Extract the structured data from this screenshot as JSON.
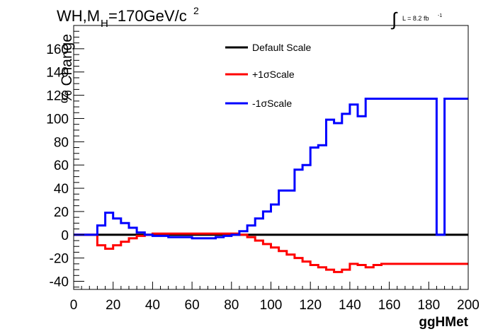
{
  "chart_data": {
    "type": "line",
    "title_main": "WH,M",
    "title_sub": "H",
    "title_rest": "=170GeV/c",
    "title_sup": "2",
    "lumi_label": "L = 8.2 fb",
    "lumi_sup": "-1",
    "xlabel": "ggHMet",
    "ylabel": "% Change",
    "xlim": [
      0,
      200
    ],
    "ylim": [
      -47,
      180
    ],
    "x_ticks": [
      0,
      20,
      40,
      60,
      80,
      100,
      120,
      140,
      160,
      180,
      200
    ],
    "y_ticks": [
      -40,
      -20,
      0,
      20,
      40,
      60,
      80,
      100,
      120,
      140,
      160
    ],
    "legend_position": "top-center",
    "bin_width": 4,
    "bin_edges_start": 0,
    "series": [
      {
        "name": "Default Scale",
        "color": "#000000",
        "values": [
          0,
          0,
          0,
          0,
          0,
          0,
          0,
          0,
          0,
          0,
          0,
          0,
          0,
          0,
          0,
          0,
          0,
          0,
          0,
          0,
          0,
          0,
          0,
          0,
          0,
          0,
          0,
          0,
          0,
          0,
          0,
          0,
          0,
          0,
          0,
          0,
          0,
          0,
          0,
          0,
          0,
          0,
          0,
          0,
          0,
          0,
          0,
          0,
          0,
          0
        ]
      },
      {
        "name": "+1σScale",
        "color": "#ff0000",
        "values": [
          0,
          0,
          0,
          -9,
          -12,
          -9,
          -6,
          -3,
          -1,
          0,
          1,
          1,
          1,
          1,
          1,
          1,
          1,
          1,
          1,
          1,
          1,
          0,
          -2,
          -5,
          -8,
          -11,
          -14,
          -17,
          -20,
          -23,
          -26,
          -28,
          -30,
          -32,
          -30,
          -25,
          -26,
          -28,
          -26,
          -25,
          -25,
          -25,
          -25,
          -25,
          -25,
          -25,
          -25,
          -25,
          -25,
          -25
        ]
      },
      {
        "name": "-1σScale",
        "color": "#0000ff",
        "values": [
          0,
          0,
          0,
          8,
          19,
          14,
          10,
          6,
          2,
          0,
          -1,
          -1,
          -2,
          -2,
          -2,
          -3,
          -3,
          -3,
          -2,
          -1,
          0,
          3,
          8,
          14,
          20,
          26,
          38,
          38,
          56,
          60,
          75,
          77,
          99,
          96,
          104,
          112,
          102,
          117,
          117,
          117,
          117,
          117,
          117,
          117,
          117,
          117,
          0,
          117,
          117,
          117
        ]
      }
    ]
  }
}
